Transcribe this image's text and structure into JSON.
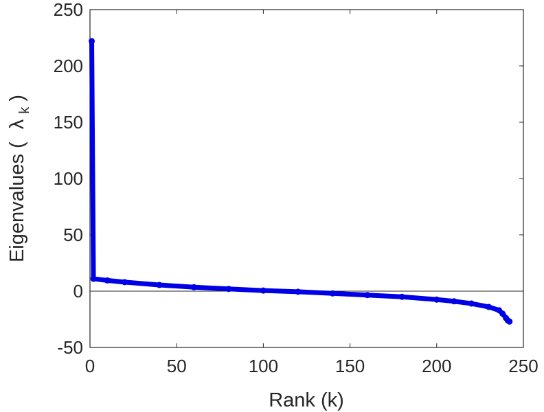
{
  "chart_data": {
    "type": "scatter",
    "title": "",
    "xlabel": "Rank (k)",
    "ylabel": "Eigenvalues (",
    "ylabel_symbol": "λ",
    "ylabel_subscript": "k",
    "ylabel_close": ")",
    "xlim": [
      0,
      250
    ],
    "ylim": [
      -50,
      250
    ],
    "x_ticks": [
      0,
      50,
      100,
      150,
      200,
      250
    ],
    "y_ticks": [
      -50,
      0,
      50,
      100,
      150,
      200,
      250
    ],
    "x_tick_labels": [
      "0",
      "50",
      "100",
      "150",
      "200",
      "250"
    ],
    "y_tick_labels": [
      "-50",
      "0",
      "50",
      "100",
      "150",
      "200",
      "250"
    ],
    "zero_line": true,
    "grid": false,
    "series": [
      {
        "color": "#0000e6",
        "x": [
          1,
          2,
          10,
          20,
          40,
          60,
          80,
          100,
          120,
          140,
          160,
          180,
          200,
          210,
          220,
          230,
          236,
          238,
          240,
          241,
          242
        ],
        "y": [
          222,
          11,
          9.5,
          8,
          5.5,
          3.5,
          2,
          0.5,
          -0.5,
          -2,
          -3.5,
          -5,
          -7.5,
          -9,
          -11,
          -14,
          -17,
          -20,
          -24,
          -26,
          -27
        ]
      }
    ]
  }
}
